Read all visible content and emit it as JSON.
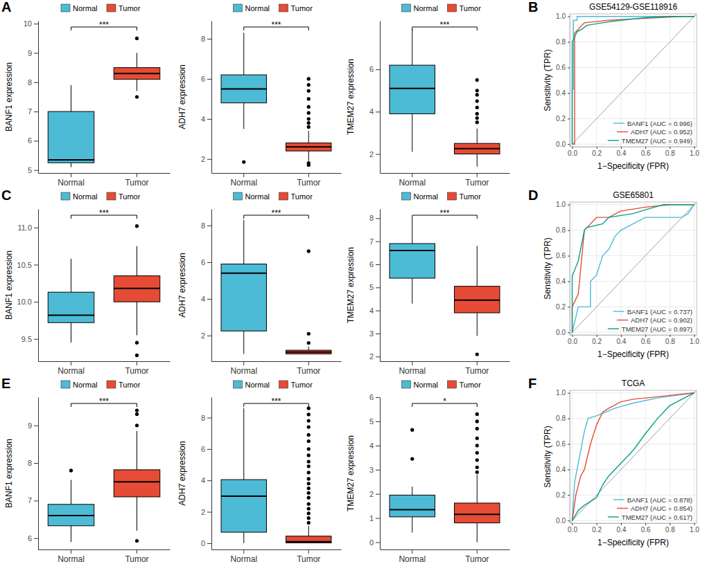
{
  "chart_data": [
    {
      "type": "box",
      "panel": "A",
      "ylabel": "BANF1 expression",
      "categories": [
        "Normal",
        "Tumor"
      ],
      "colors": [
        "#4DBBD5",
        "#E64B35"
      ],
      "legend": "top",
      "annotation": "***",
      "ylim": [
        4.9,
        10.1
      ],
      "yticks": [
        5,
        6,
        7,
        8,
        9,
        10
      ],
      "boxes": [
        {
          "min": 5.1,
          "q1": 5.25,
          "median": 5.35,
          "q3": 7.0,
          "max": 7.9,
          "outliers": []
        },
        {
          "min": 7.7,
          "q1": 8.1,
          "median": 8.3,
          "q3": 8.5,
          "max": 9.0,
          "outliers": [
            7.5,
            9.5
          ]
        }
      ]
    },
    {
      "type": "box",
      "ylabel": "ADH7 expression",
      "categories": [
        "Normal",
        "Tumor"
      ],
      "colors": [
        "#4DBBD5",
        "#E64B35"
      ],
      "legend": "top",
      "annotation": "***",
      "ylim": [
        1.3,
        8.9
      ],
      "yticks": [
        2,
        4,
        6,
        8
      ],
      "boxes": [
        {
          "min": 3.5,
          "q1": 4.8,
          "median": 5.5,
          "q3": 6.2,
          "max": 8.3,
          "outliers": [
            1.85
          ]
        },
        {
          "min": 1.9,
          "q1": 2.4,
          "median": 2.6,
          "q3": 2.8,
          "max": 3.4,
          "outliers": [
            1.7,
            1.8,
            3.6,
            3.8,
            4.0,
            4.3,
            4.6,
            5.0,
            5.4,
            5.7,
            6.0
          ]
        }
      ]
    },
    {
      "type": "box",
      "ylabel": "TMEM27 expression",
      "categories": [
        "Normal",
        "Tumor"
      ],
      "colors": [
        "#4DBBD5",
        "#E64B35"
      ],
      "legend": "top",
      "annotation": "***",
      "ylim": [
        1.1,
        8.3
      ],
      "yticks": [
        2,
        4,
        6
      ],
      "boxes": [
        {
          "min": 2.1,
          "q1": 3.9,
          "median": 5.1,
          "q3": 6.2,
          "max": 7.9,
          "outliers": []
        },
        {
          "min": 1.4,
          "q1": 2.0,
          "median": 2.25,
          "q3": 2.5,
          "max": 3.2,
          "outliers": [
            3.5,
            3.7,
            3.9,
            4.2,
            4.5,
            4.8,
            5.0,
            5.5
          ]
        }
      ]
    },
    {
      "type": "line",
      "panel": "B",
      "title": "GSE54129-GSE118916",
      "xlabel": "1−Specificity (FPR)",
      "ylabel": "Sensitivity (TPR)",
      "grid": true,
      "legend": "bottom-right",
      "xlim": [
        -0.02,
        1.02
      ],
      "ylim": [
        -0.02,
        1.02
      ],
      "xticks": [
        {
          "value": 0,
          "label": "0.0"
        },
        0.2,
        0.4,
        0.6,
        0.8,
        {
          "value": 1,
          "label": "1.0"
        }
      ],
      "yticks": [
        {
          "value": 0,
          "label": "0.0"
        },
        0.2,
        0.4,
        0.6,
        0.8,
        {
          "value": 1,
          "label": "1.0"
        }
      ],
      "series": [
        {
          "name": "BANF1 (AUC = 0.996)",
          "color": "#4DBBD5",
          "x": [
            0,
            0,
            0.01,
            0.01,
            0.04,
            0.04,
            1
          ],
          "values": [
            0,
            0.43,
            0.43,
            0.97,
            0.97,
            1,
            1
          ]
        },
        {
          "name": "ADH7 (AUC = 0.952)",
          "color": "#E64B35",
          "x": [
            0,
            0.02,
            0.02,
            0.05,
            0.08,
            0.1,
            0.2,
            0.3,
            0.5,
            0.7,
            0.9,
            1
          ],
          "values": [
            0,
            0,
            0.87,
            0.9,
            0.93,
            0.95,
            0.96,
            0.97,
            0.98,
            0.99,
            1,
            1
          ]
        },
        {
          "name": "TMEM27 (AUC = 0.949)",
          "color": "#00A087",
          "x": [
            0,
            0,
            0.04,
            0.08,
            0.12,
            0.25,
            0.4,
            0.6,
            0.8,
            1
          ],
          "values": [
            0,
            0.8,
            0.88,
            0.9,
            0.93,
            0.95,
            0.97,
            0.99,
            1,
            1
          ]
        }
      ]
    },
    {
      "type": "box",
      "panel": "C",
      "ylabel": "BANF1 expression",
      "categories": [
        "Normal",
        "Tumor"
      ],
      "colors": [
        "#4DBBD5",
        "#E64B35"
      ],
      "legend": "top",
      "annotation": "***",
      "ylim": [
        9.2,
        11.25
      ],
      "yticks": [
        9.5,
        {
          "value": 10,
          "label": "10.0"
        },
        10.5,
        {
          "value": 11,
          "label": "11.0"
        }
      ],
      "boxes": [
        {
          "min": 9.45,
          "q1": 9.72,
          "median": 9.82,
          "q3": 10.13,
          "max": 10.58,
          "outliers": []
        },
        {
          "min": 9.55,
          "q1": 10.0,
          "median": 10.18,
          "q3": 10.35,
          "max": 10.75,
          "outliers": [
            9.45,
            9.28,
            11.02
          ]
        }
      ]
    },
    {
      "type": "box",
      "ylabel": "ADH7 expression",
      "categories": [
        "Normal",
        "Tumor"
      ],
      "colors": [
        "#4DBBD5",
        "#E64B35"
      ],
      "legend": "top",
      "annotation": "***",
      "ylim": [
        0.6,
        8.9
      ],
      "yticks": [
        2,
        4,
        6,
        8
      ],
      "boxes": [
        {
          "min": 1.0,
          "q1": 2.25,
          "median": 5.4,
          "q3": 5.9,
          "max": 8.3,
          "outliers": []
        },
        {
          "min": 1.0,
          "q1": 1.0,
          "median": 1.1,
          "q3": 1.2,
          "max": 1.4,
          "outliers": [
            1.6,
            2.1,
            6.6
          ]
        }
      ]
    },
    {
      "type": "box",
      "ylabel": "TMEM27 expression",
      "categories": [
        "Normal",
        "Tumor"
      ],
      "colors": [
        "#4DBBD5",
        "#E64B35"
      ],
      "legend": "top",
      "annotation": "***",
      "ylim": [
        1.8,
        8.4
      ],
      "yticks": [
        2,
        3,
        4,
        5,
        6,
        7,
        8
      ],
      "boxes": [
        {
          "min": 4.3,
          "q1": 5.4,
          "median": 6.6,
          "q3": 6.9,
          "max": 8.0,
          "outliers": []
        },
        {
          "min": 2.9,
          "q1": 3.9,
          "median": 4.45,
          "q3": 5.05,
          "max": 6.8,
          "outliers": [
            2.1
          ]
        }
      ]
    },
    {
      "type": "line",
      "panel": "D",
      "title": "GSE65801",
      "xlabel": "1−Specificity (FPR)",
      "ylabel": "Sensitivity (TPR)",
      "grid": true,
      "legend": "bottom-right",
      "xlim": [
        -0.02,
        1.02
      ],
      "ylim": [
        -0.02,
        1.02
      ],
      "xticks": [
        {
          "value": 0,
          "label": "0.0"
        },
        0.2,
        0.4,
        0.6,
        0.8,
        {
          "value": 1,
          "label": "1.0"
        }
      ],
      "yticks": [
        {
          "value": 0,
          "label": "0.0"
        },
        0.2,
        0.4,
        0.6,
        0.8,
        {
          "value": 1,
          "label": "1.0"
        }
      ],
      "series": [
        {
          "name": "BANF1 (AUC = 0.737)",
          "color": "#4DBBD5",
          "x": [
            0,
            0.05,
            0.15,
            0.15,
            0.2,
            0.25,
            0.3,
            0.35,
            0.4,
            0.5,
            0.6,
            0.9,
            0.95,
            1
          ],
          "values": [
            0,
            0.2,
            0.2,
            0.4,
            0.45,
            0.6,
            0.65,
            0.75,
            0.8,
            0.85,
            0.9,
            0.9,
            0.93,
            1
          ]
        },
        {
          "name": "ADH7 (AUC = 0.902)",
          "color": "#E64B35",
          "x": [
            0,
            0,
            0.05,
            0.08,
            0.1,
            0.15,
            0.2,
            0.3,
            0.4,
            0.6,
            0.8,
            1
          ],
          "values": [
            0,
            0.2,
            0.3,
            0.6,
            0.8,
            0.85,
            0.9,
            0.9,
            0.95,
            0.98,
            1,
            1
          ]
        },
        {
          "name": "TMEM27 (AUC = 0.897)",
          "color": "#00A087",
          "x": [
            0,
            0,
            0.05,
            0.1,
            0.12,
            0.25,
            0.3,
            0.5,
            0.6,
            0.75,
            1
          ],
          "values": [
            0,
            0.44,
            0.56,
            0.8,
            0.82,
            0.85,
            0.9,
            0.93,
            0.96,
            1,
            1
          ]
        }
      ]
    },
    {
      "type": "box",
      "panel": "E",
      "ylabel": "BANF1 expression",
      "categories": [
        "Normal",
        "Tumor"
      ],
      "colors": [
        "#4DBBD5",
        "#E64B35"
      ],
      "legend": "top",
      "annotation": "***",
      "ylim": [
        5.7,
        9.75
      ],
      "yticks": [
        6,
        7,
        8,
        9
      ],
      "boxes": [
        {
          "min": 5.9,
          "q1": 6.33,
          "median": 6.6,
          "q3": 6.9,
          "max": 7.55,
          "outliers": [
            7.8
          ]
        },
        {
          "min": 6.2,
          "q1": 7.1,
          "median": 7.5,
          "q3": 7.82,
          "max": 8.85,
          "outliers": [
            5.93,
            9.0,
            9.3,
            9.4
          ]
        }
      ]
    },
    {
      "type": "box",
      "ylabel": "ADH7 expression",
      "categories": [
        "Normal",
        "Tumor"
      ],
      "colors": [
        "#4DBBD5",
        "#E64B35"
      ],
      "legend": "top",
      "annotation": "***",
      "ylim": [
        -0.4,
        9.3
      ],
      "yticks": [
        0,
        2,
        4,
        6,
        8
      ],
      "boxes": [
        {
          "min": 0,
          "q1": 0.7,
          "median": 3.0,
          "q3": 4.05,
          "max": 8.6,
          "outliers": []
        },
        {
          "min": 0,
          "q1": 0.02,
          "median": 0.1,
          "q3": 0.45,
          "max": 1.1,
          "outliers": [
            1.3,
            1.6,
            1.9,
            2.2,
            2.5,
            2.9,
            3.2,
            3.5,
            3.8,
            4.1,
            4.5,
            4.9,
            5.2,
            5.6,
            6.0,
            6.5,
            6.9,
            7.4,
            7.8,
            8.2,
            8.6
          ]
        }
      ]
    },
    {
      "type": "box",
      "ylabel": "TMEM27 expression",
      "categories": [
        "Normal",
        "Tumor"
      ],
      "colors": [
        "#4DBBD5",
        "#E64B35"
      ],
      "legend": "top",
      "annotation": "*",
      "ylim": [
        -0.3,
        6.0
      ],
      "yticks": [
        0,
        1,
        2,
        3,
        4,
        5,
        6
      ],
      "boxes": [
        {
          "min": 0.4,
          "q1": 1.05,
          "median": 1.35,
          "q3": 1.95,
          "max": 2.3,
          "outliers": [
            3.45,
            4.65
          ]
        },
        {
          "min": 0,
          "q1": 0.8,
          "median": 1.15,
          "q3": 1.62,
          "max": 2.8,
          "outliers": [
            2.9,
            3.1,
            3.4,
            3.7,
            4.0,
            4.3,
            4.7,
            5.0,
            5.3
          ]
        }
      ]
    },
    {
      "type": "line",
      "panel": "F",
      "title": "TCGA",
      "xlabel": "1−Specificity (FPR)",
      "ylabel": "Sensitivity (TPR)",
      "grid": true,
      "legend": "bottom-right",
      "xlim": [
        -0.02,
        1.02
      ],
      "ylim": [
        -0.02,
        1.02
      ],
      "xticks": [
        {
          "value": 0,
          "label": "0.0"
        },
        0.2,
        0.4,
        0.6,
        0.8,
        {
          "value": 1,
          "label": "1.0"
        }
      ],
      "yticks": [
        {
          "value": 0,
          "label": "0.0"
        },
        0.2,
        0.4,
        0.6,
        0.8,
        {
          "value": 1,
          "label": "1.0"
        }
      ],
      "series": [
        {
          "name": "BANF1 (AUC = 0.878)",
          "color": "#4DBBD5",
          "x": [
            0,
            0.02,
            0.05,
            0.08,
            0.1,
            0.13,
            0.2,
            0.25,
            0.35,
            0.5,
            0.6,
            0.7,
            0.85,
            1
          ],
          "values": [
            0,
            0.3,
            0.45,
            0.6,
            0.7,
            0.8,
            0.82,
            0.84,
            0.88,
            0.92,
            0.94,
            0.96,
            0.98,
            1
          ]
        },
        {
          "name": "ADH7 (AUC = 0.854)",
          "color": "#E64B35",
          "x": [
            0,
            0.03,
            0.07,
            0.1,
            0.15,
            0.2,
            0.25,
            0.3,
            0.4,
            0.5,
            0.6,
            0.8,
            1
          ],
          "values": [
            0,
            0.2,
            0.35,
            0.4,
            0.6,
            0.75,
            0.85,
            0.88,
            0.93,
            0.95,
            0.96,
            0.98,
            1
          ]
        },
        {
          "name": "TMEM27 (AUC = 0.617)",
          "color": "#00A087",
          "x": [
            0,
            0.05,
            0.1,
            0.15,
            0.2,
            0.25,
            0.3,
            0.4,
            0.5,
            0.6,
            0.7,
            0.8,
            0.9,
            1
          ],
          "values": [
            0,
            0.08,
            0.12,
            0.15,
            0.18,
            0.28,
            0.35,
            0.45,
            0.55,
            0.68,
            0.8,
            0.9,
            0.95,
            1
          ]
        }
      ]
    }
  ]
}
